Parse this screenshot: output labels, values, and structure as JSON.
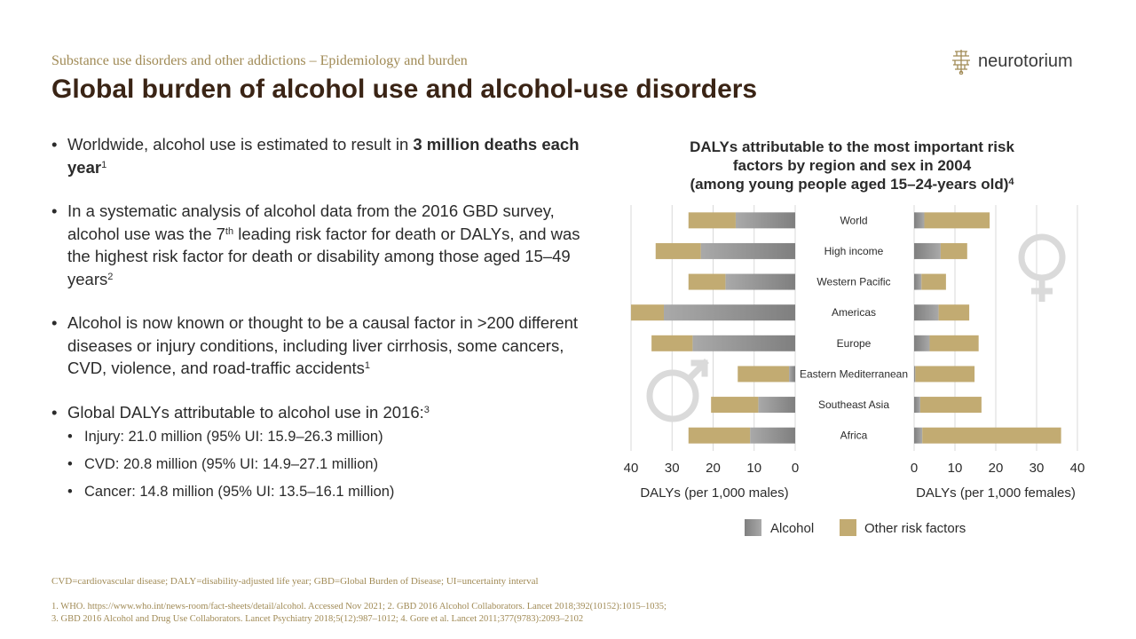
{
  "header": {
    "subtitle": "Substance use disorders and other addictions – Epidemiology  and burden",
    "title": "Global burden of alcohol use and alcohol-use disorders"
  },
  "logo": {
    "text": "neurotorium",
    "icon": "brain-logo-icon"
  },
  "bullets": [
    {
      "pre": "Worldwide, alcohol use is estimated to result in ",
      "bold": "3 million deaths each year",
      "sup": "1"
    },
    {
      "pre": "In a systematic analysis of alcohol data from the 2016 GBD survey, alcohol use was the 7",
      "sup_mid": "th",
      "post": " leading risk factor for death or DALYs, and was the highest risk factor for death or disability among  those aged 15–49 years",
      "sup": "2"
    },
    {
      "pre": "Alcohol  is now known or thought  to be a causal factor in >200 different diseases or injury conditions, including liver cirrhosis, some cancers, CVD, violence, and road-traffic accidents",
      "sup": "1"
    },
    {
      "pre": "Global DALYs attributable  to alcohol use in 2016:",
      "sup": "3",
      "sub": [
        "Injury: 21.0 million (95% UI: 15.9–26.3 million)",
        "CVD: 20.8 million (95% UI: 14.9–27.1 million)",
        "Cancer: 14.8 million (95% UI: 13.5–16.1 million)"
      ]
    }
  ],
  "chart_data": {
    "type": "bar",
    "orientation": "horizontal",
    "stacked": true,
    "layout": "back-to-back",
    "title_lines": [
      "DALYs attributable to the most important risk",
      "factors by region and sex in 2004",
      "(among young people aged 15–24-years old)"
    ],
    "title_sup": "4",
    "categories": [
      "World",
      "High income",
      "Western Pacific",
      "Americas",
      "Europe",
      "Eastern Mediterranean",
      "Southeast Asia",
      "Africa"
    ],
    "panels": [
      {
        "sex": "male",
        "xlabel": "DALYs (per 1,000 males)",
        "xlim": [
          0,
          40
        ],
        "ticks": [
          40,
          30,
          20,
          10,
          0
        ],
        "direction": "leftward",
        "symbol": "male-symbol-icon",
        "series": [
          {
            "name": "Alcohol",
            "values": [
              14.5,
              23,
              17,
              32,
              25,
              1.5,
              9,
              11
            ]
          },
          {
            "name": "Other risk factors",
            "values": [
              11.5,
              11,
              9,
              8,
              10,
              12.5,
              11.5,
              15
            ]
          }
        ]
      },
      {
        "sex": "female",
        "xlabel": "DALYs (per 1,000 females)",
        "xlim": [
          0,
          40
        ],
        "ticks": [
          0,
          10,
          20,
          30,
          40
        ],
        "direction": "rightward",
        "symbol": "female-symbol-icon",
        "series": [
          {
            "name": "Alcohol",
            "values": [
              2.5,
              6.5,
              1.8,
              6,
              3.8,
              0.3,
              1.5,
              2
            ]
          },
          {
            "name": "Other risk factors",
            "values": [
              16,
              6.5,
              6,
              7.5,
              12,
              14.5,
              15,
              34
            ]
          }
        ]
      }
    ],
    "legend": [
      "Alcohol",
      "Other risk factors"
    ],
    "legend_position": "bottom",
    "grid": true,
    "colors": {
      "alcohol": "#7f7f7f",
      "alcohol_light": "#a9a9a9",
      "other": "#c2ab72",
      "grid": "#d9d9d9",
      "symbol": "#dadada"
    }
  },
  "footer": {
    "abbreviations": "CVD=cardiovascular  disease; DALY=disability-adjusted life year; GBD=Global Burden of Disease; UI=uncertainty interval",
    "ref_line1": "1. WHO. https://www.who.int/news-room/fact-sheets/detail/alcohol. Accessed Nov 2021; 2. GBD 2016 Alcohol Collaborators. Lancet 2018;392(10152):1015–1035;",
    "ref_line2": "3. GBD 2016 Alcohol and Drug Use Collaborators. Lancet Psychiatry 2018;5(12):987–1012; 4. Gore et al. Lancet 2011;377(9783):2093–2102"
  }
}
